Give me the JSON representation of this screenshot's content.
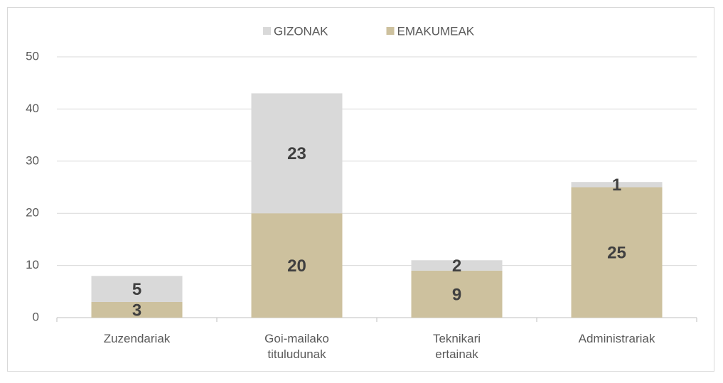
{
  "chart_data": {
    "type": "bar",
    "stacked": true,
    "categories": [
      "Zuzendariak",
      "Goi-mailako tituludunak",
      "Teknikari ertainak",
      "Administrariak"
    ],
    "series": [
      {
        "name": "EMAKUMEAK",
        "color": "#cdc19e",
        "values": [
          3,
          20,
          9,
          25
        ]
      },
      {
        "name": "GIZONAK",
        "color": "#d9d9d9",
        "values": [
          5,
          23,
          2,
          1
        ]
      }
    ],
    "ylim": [
      0,
      50
    ],
    "yticks": [
      0,
      10,
      20,
      30,
      40,
      50
    ],
    "grid": true,
    "legend": "top"
  }
}
